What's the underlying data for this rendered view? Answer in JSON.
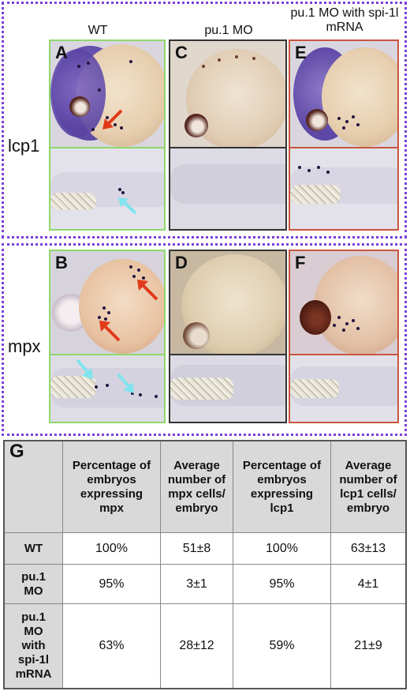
{
  "columns": {
    "wt": "WT",
    "pu1": "pu.1 MO",
    "pu1_spi": "pu.1 MO with spi-1l mRNA"
  },
  "rows": {
    "lcp1": "lcp1",
    "mpx": "mpx"
  },
  "panels": {
    "A": "A",
    "B": "B",
    "C": "C",
    "D": "D",
    "E": "E",
    "F": "F"
  },
  "table": {
    "letter": "G",
    "headers": [
      "Percentage of embryos expressing mpx",
      "Average number of mpx cells/ embryo",
      "Percentage of embryos expressing lcp1",
      "Average number of lcp1 cells/ embryo"
    ],
    "rows": [
      {
        "label": "WT",
        "cells": [
          "100%",
          "51±8",
          "100%",
          "63±13"
        ]
      },
      {
        "label": "pu.1 MO",
        "cells": [
          "95%",
          "3±1",
          "95%",
          "4±1"
        ]
      },
      {
        "label": "pu.1 MO with spi-1l mRNA",
        "cells": [
          "63%",
          "28±12",
          "59%",
          "21±9"
        ]
      }
    ]
  },
  "colors": {
    "border_wt": "#8fd86a",
    "border_pu1": "#333333",
    "border_rescue": "#c9553e",
    "row_box": "#7a40d8",
    "arrow_red": "#e03a1a",
    "arrow_cyan": "#7fe4ee",
    "stain_purple": "#5a3fa8"
  }
}
